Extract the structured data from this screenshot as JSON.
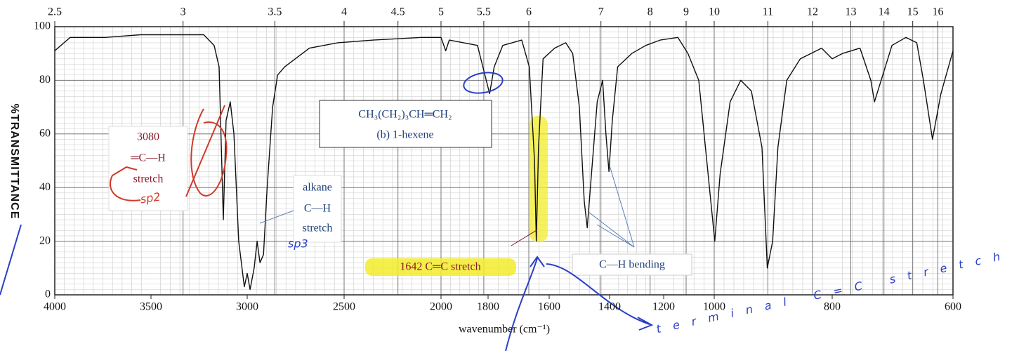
{
  "chart_data": {
    "type": "line",
    "x_label": "wavenumber (cm⁻¹)",
    "y_label": "%TRANSMITTANCE",
    "xlim": [
      4000,
      600
    ],
    "ylim": [
      0,
      100
    ],
    "xticks": [
      4000,
      3500,
      3000,
      2500,
      2000,
      1800,
      1600,
      1400,
      1200,
      1000,
      800,
      600
    ],
    "yticks": [
      0,
      20,
      40,
      60,
      80,
      100
    ],
    "top_axis_ticks": [
      2.5,
      3,
      3.5,
      4,
      4.5,
      5,
      5.5,
      6,
      7,
      8,
      9,
      10,
      11,
      12,
      13,
      14,
      15,
      16
    ],
    "grid": true,
    "color": "#111111",
    "x": [
      4000,
      3920,
      3737,
      3555,
      3372,
      3226,
      3172,
      3146,
      3124,
      3110,
      3088,
      3069,
      3044,
      3015,
      3000,
      2985,
      2964,
      2949,
      2934,
      2916,
      2897,
      2869,
      2843,
      2807,
      2752,
      2679,
      2533,
      2350,
      2100,
      2000,
      1980,
      1965,
      1845,
      1822,
      1795,
      1780,
      1752,
      1690,
      1665,
      1648,
      1642,
      1635,
      1620,
      1582,
      1545,
      1522,
      1500,
      1484,
      1474,
      1460,
      1441,
      1423,
      1412,
      1402,
      1390,
      1370,
      1318,
      1266,
      1213,
      1144,
      1104,
      1061,
      1019,
      999,
      990,
      973,
      955,
      937,
      919,
      910,
      901,
      892,
      877,
      854,
      818,
      800,
      783,
      754,
      736,
      730,
      719,
      701,
      678,
      660,
      649,
      634,
      620,
      600
    ],
    "values": [
      91,
      96,
      96,
      97,
      97,
      97,
      93,
      85,
      28,
      65,
      72,
      60,
      20,
      3,
      8,
      2,
      10,
      20,
      12,
      15,
      40,
      70,
      82,
      85,
      88,
      92,
      94,
      95,
      96,
      96,
      91,
      95,
      93,
      85,
      75,
      85,
      93,
      95,
      85,
      50,
      20,
      55,
      88,
      92,
      94,
      90,
      70,
      35,
      25,
      45,
      72,
      80,
      60,
      46,
      65,
      85,
      90,
      93,
      95,
      96,
      90,
      80,
      40,
      20,
      45,
      72,
      80,
      76,
      55,
      10,
      20,
      55,
      80,
      88,
      92,
      88,
      90,
      92,
      80,
      72,
      80,
      93,
      96,
      94,
      80,
      58,
      75,
      91
    ],
    "annotations": {
      "formula": "CH₃(CH₂)₃CH═CH₂",
      "compound": "(b) 1-hexene",
      "peak_3080": "3080",
      "peak_3080_bond": "═C—H",
      "peak_3080_kind": "stretch",
      "alkane": "alkane",
      "alkane_bond": "C—H",
      "alkane_kind": "stretch",
      "peak_1642": "1642 C═C stretch",
      "bending": "C—H bending",
      "note_sp2": "sp2",
      "note_sp3": "sp3",
      "note_terminal": "terminal C=C stretch"
    }
  }
}
